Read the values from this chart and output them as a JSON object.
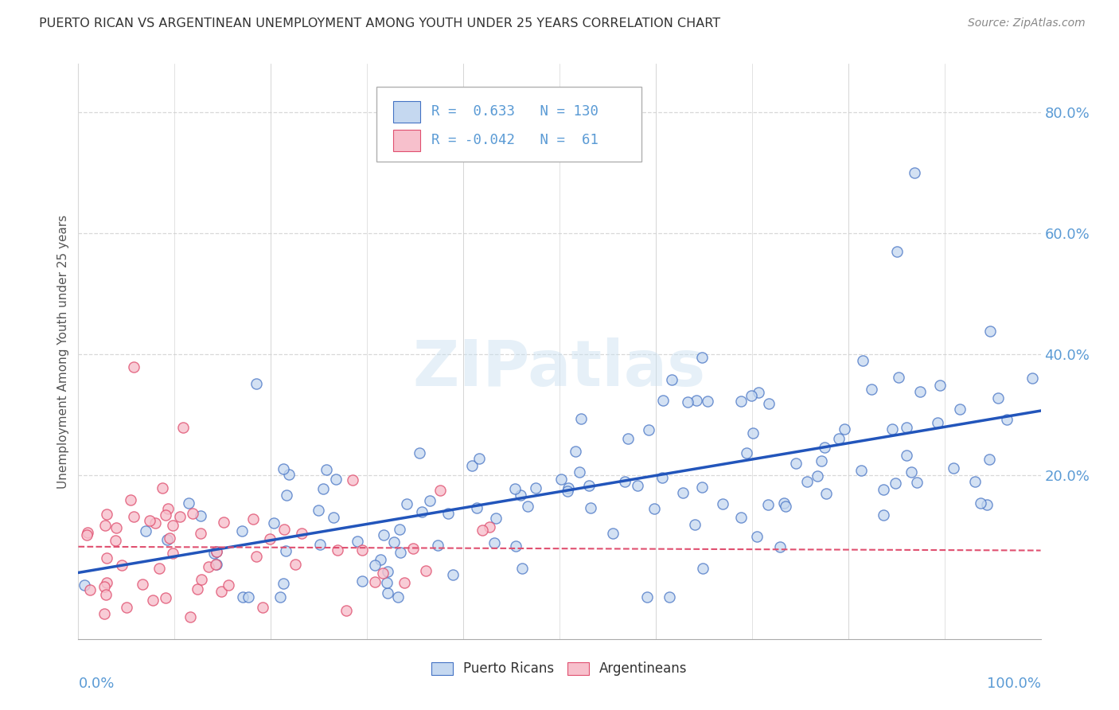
{
  "title": "PUERTO RICAN VS ARGENTINEAN UNEMPLOYMENT AMONG YOUTH UNDER 25 YEARS CORRELATION CHART",
  "source": "Source: ZipAtlas.com",
  "ylabel": "Unemployment Among Youth under 25 years",
  "pr_color_fill": "#c5d8f0",
  "pr_color_edge": "#4472c4",
  "arg_color_fill": "#f7c0cc",
  "arg_color_edge": "#e05070",
  "pr_line_color": "#2255bb",
  "arg_line_color": "#e05070",
  "pr_R": 0.633,
  "pr_N": 130,
  "arg_R": -0.042,
  "arg_N": 61,
  "legend_label_pr": "Puerto Ricans",
  "legend_label_arg": "Argentineans",
  "title_color": "#333333",
  "axis_label_color": "#5b9bd5",
  "watermark": "ZIPatlas",
  "background": "#ffffff",
  "grid_color": "#d8d8d8",
  "ytick_vals": [
    0.0,
    0.2,
    0.4,
    0.6,
    0.8
  ],
  "ytick_labels": [
    "",
    "20.0%",
    "40.0%",
    "60.0%",
    "80.0%"
  ],
  "xlim": [
    0.0,
    1.0
  ],
  "ylim": [
    -0.07,
    0.88
  ]
}
